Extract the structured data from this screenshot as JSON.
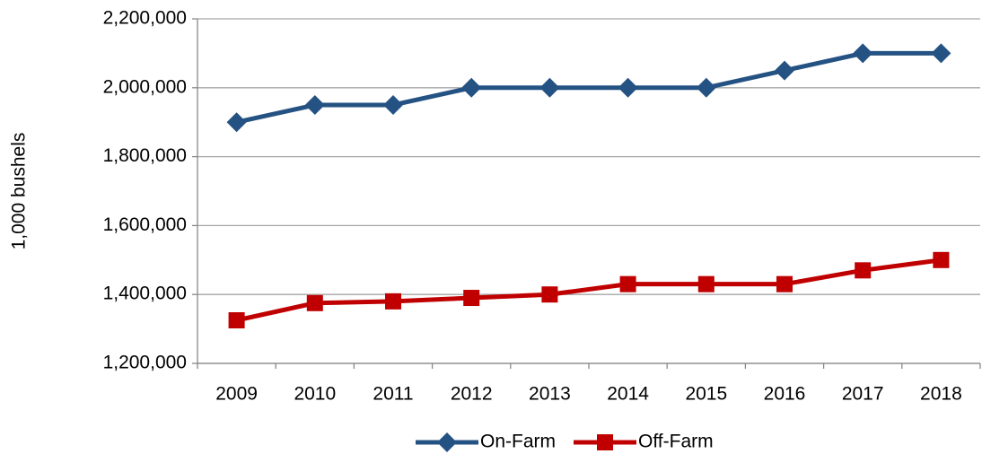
{
  "chart_data": {
    "type": "line",
    "y_label": "1,000 bushels",
    "categories": [
      "2009",
      "2010",
      "2011",
      "2012",
      "2013",
      "2014",
      "2015",
      "2016",
      "2017",
      "2018"
    ],
    "series": [
      {
        "name": "On-Farm",
        "color": "#245283",
        "marker": "diamond",
        "values": [
          1900000,
          1950000,
          1950000,
          2000000,
          2000000,
          2000000,
          2000000,
          2050000,
          2100000,
          2100000
        ]
      },
      {
        "name": "Off-Farm",
        "color": "#c00000",
        "marker": "square",
        "values": [
          1325000,
          1375000,
          1380000,
          1390000,
          1400000,
          1430000,
          1430000,
          1430000,
          1470000,
          1500000
        ]
      }
    ],
    "ylim": [
      1200000,
      2200000
    ],
    "yticks": [
      {
        "value": 1200000,
        "label": "1,200,000"
      },
      {
        "value": 1400000,
        "label": "1,400,000"
      },
      {
        "value": 1600000,
        "label": "1,600,000"
      },
      {
        "value": 1800000,
        "label": "1,800,000"
      },
      {
        "value": 2000000,
        "label": "2,000,000"
      },
      {
        "value": 2200000,
        "label": "2,200,000"
      }
    ],
    "grid": true,
    "legend": "bottom"
  }
}
